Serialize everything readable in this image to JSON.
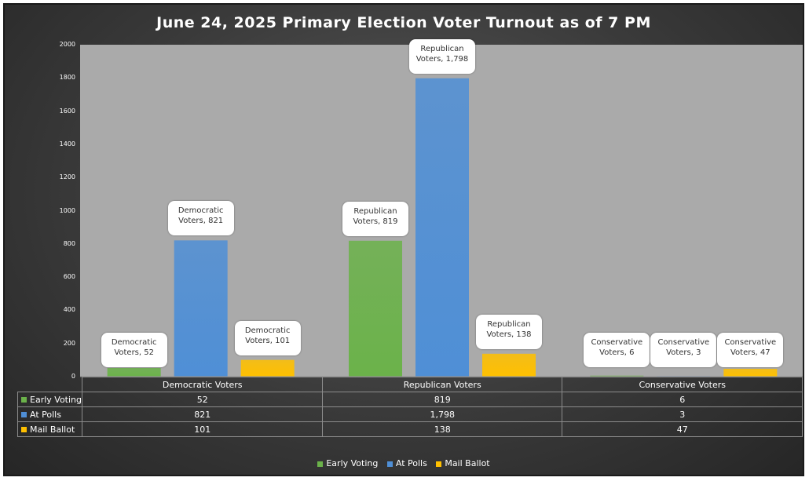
{
  "chart_data": {
    "type": "bar",
    "title": "June 24, 2025 Primary Election Voter Turnout as of 7 PM",
    "categories": [
      "Democratic Voters",
      "Republican Voters",
      "Conservative Voters"
    ],
    "series": [
      {
        "name": "Early Voting",
        "color": "#6bb24a",
        "values": [
          52,
          819,
          6
        ],
        "display": [
          "52",
          "819",
          "6"
        ],
        "labels": [
          "Democratic Voters, 52",
          "Republican Voters, 819",
          "Conservative Voters, 6"
        ]
      },
      {
        "name": "At Polls",
        "color": "#4f8fd6",
        "values": [
          821,
          1798,
          3
        ],
        "display": [
          "821",
          "1,798",
          "3"
        ],
        "labels": [
          "Democratic Voters, 821",
          "Republican Voters, 1,798",
          "Conservative Voters, 3"
        ]
      },
      {
        "name": "Mail Ballot",
        "color": "#ffc000",
        "values": [
          101,
          138,
          47
        ],
        "display": [
          "101",
          "138",
          "47"
        ],
        "labels": [
          "Democratic Voters, 101",
          "Republican Voters, 138",
          "Conservative Voters, 47"
        ]
      }
    ],
    "yticks": [
      "0",
      "200",
      "400",
      "600",
      "800",
      "1000",
      "1200",
      "1400",
      "1600",
      "1800",
      "2000"
    ],
    "ylim": [
      0,
      2000
    ],
    "grid": false,
    "legend_position": "bottom",
    "data_table": true
  }
}
